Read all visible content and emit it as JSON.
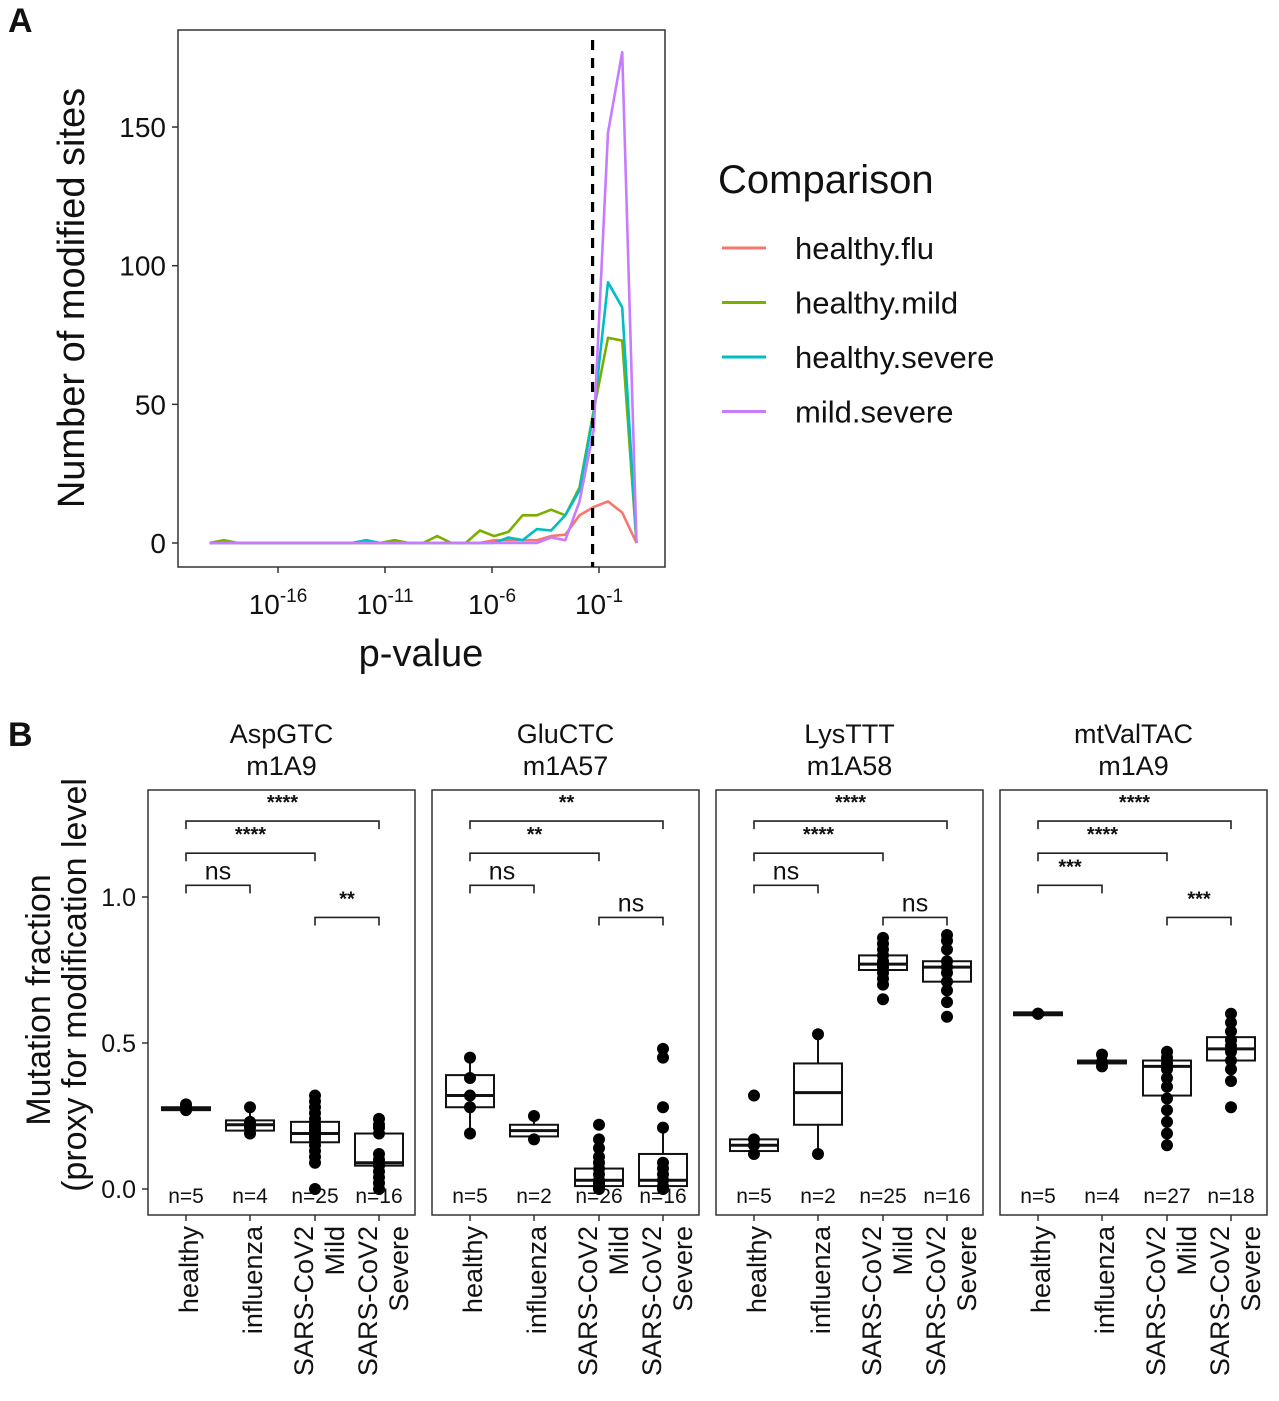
{
  "panel_labels": [
    "A",
    "B"
  ],
  "chart_data": [
    {
      "type": "line",
      "panel": "A",
      "xlabel": "p-value",
      "ylabel": "Number of modified sites",
      "x_scale": "log10",
      "x_ticks": [
        {
          "base": "10",
          "exp": "-16",
          "value": -16
        },
        {
          "base": "10",
          "exp": "-11",
          "value": -11
        },
        {
          "base": "10",
          "exp": "-6",
          "value": -6
        },
        {
          "base": "10",
          "exp": "-1",
          "value": -1
        }
      ],
      "y_ticks": [
        0,
        50,
        100,
        150
      ],
      "xlim_log10": [
        -20.6,
        1.7
      ],
      "ylim": [
        -8.6,
        185
      ],
      "threshold_log10": -1.3,
      "legend": {
        "title": "Comparison",
        "placement": "right"
      },
      "x_log10": [
        -19.2,
        -18.535,
        -17.87,
        -17.205,
        -16.54,
        -15.875,
        -15.21,
        -14.545,
        -13.88,
        -13.215,
        -12.55,
        -11.885,
        -11.22,
        -10.555,
        -9.89,
        -9.225,
        -8.56,
        -7.895,
        -7.23,
        -6.565,
        -5.9,
        -5.235,
        -4.57,
        -3.905,
        -3.24,
        -2.575,
        -1.91,
        -1.245,
        -0.58,
        0.085,
        0.75
      ],
      "series": [
        {
          "name": "healthy.flu",
          "color": "#F8766D",
          "values": [
            0,
            0,
            0,
            0,
            0,
            0,
            0,
            0,
            0,
            0,
            0,
            0,
            0,
            0,
            0,
            0,
            0,
            0,
            0,
            0,
            1,
            1,
            1,
            1,
            2.5,
            3,
            10,
            13,
            15,
            11,
            0
          ]
        },
        {
          "name": "healthy.mild",
          "color": "#7CAE00",
          "values": [
            0,
            1,
            0,
            0,
            0,
            0,
            0,
            0,
            0,
            0,
            0,
            0,
            0,
            1,
            0,
            0,
            2.5,
            0,
            0,
            4.5,
            2.5,
            4,
            10,
            10,
            12,
            10,
            20,
            48,
            74,
            73,
            0
          ]
        },
        {
          "name": "healthy.severe",
          "color": "#00BFC4",
          "values": [
            0,
            0,
            0,
            0,
            0,
            0,
            0,
            0,
            0,
            0,
            0,
            1,
            0,
            0,
            0,
            0,
            0,
            0,
            0,
            0,
            0,
            2,
            1,
            5,
            4.5,
            10,
            19,
            47,
            94,
            85,
            0
          ]
        },
        {
          "name": "mild.severe",
          "color": "#C77CFF",
          "values": [
            0,
            0,
            0,
            0,
            0,
            0,
            0,
            0,
            0,
            0,
            0,
            0,
            0,
            0,
            0,
            0,
            0,
            0,
            0,
            0,
            0,
            0,
            0,
            0,
            2,
            1,
            15,
            41,
            148,
            177,
            0
          ]
        }
      ]
    },
    {
      "type": "box",
      "panel": "B",
      "ylabel_lines": [
        "Mutation fraction",
        "(proxy for modification level"
      ],
      "y_ticks": [
        "0.0",
        "0.5",
        "1.0"
      ],
      "y_tick_values": [
        0,
        0.5,
        1.0
      ],
      "ylim": [
        -0.09,
        1.36
      ],
      "categories": [
        [
          "healthy"
        ],
        [
          "influenza"
        ],
        [
          "SARS-CoV2",
          "Mild"
        ],
        [
          "SARS-CoV2",
          "Severe"
        ]
      ],
      "facets": [
        {
          "title": [
            "AspGTC",
            "m1A9"
          ],
          "n": [
            "n=5",
            "n=4",
            "n=25",
            "n=16"
          ],
          "boxes": [
            {
              "q1": 0.27,
              "median": 0.275,
              "q3": 0.28,
              "lo": 0.27,
              "hi": 0.28,
              "points": [
                0.27,
                0.275,
                0.28,
                0.29,
                0.275
              ]
            },
            {
              "q1": 0.2,
              "median": 0.22,
              "q3": 0.235,
              "lo": 0.19,
              "hi": 0.28,
              "points": [
                0.19,
                0.21,
                0.23,
                0.28
              ]
            },
            {
              "q1": 0.16,
              "median": 0.19,
              "q3": 0.23,
              "lo": 0.09,
              "hi": 0.32,
              "points": [
                0.0,
                0.09,
                0.11,
                0.13,
                0.15,
                0.17,
                0.18,
                0.19,
                0.2,
                0.21,
                0.22,
                0.24,
                0.26,
                0.28,
                0.3,
                0.32
              ]
            },
            {
              "q1": 0.08,
              "median": 0.09,
              "q3": 0.19,
              "lo": 0.0,
              "hi": 0.24,
              "points": [
                0.0,
                0.02,
                0.04,
                0.06,
                0.08,
                0.1,
                0.12,
                0.19,
                0.21,
                0.22,
                0.24
              ]
            }
          ],
          "comparisons": [
            {
              "from": 0,
              "to": 1,
              "y": 1.04,
              "label": "ns"
            },
            {
              "from": 0,
              "to": 2,
              "y": 1.15,
              "label": "****"
            },
            {
              "from": 0,
              "to": 3,
              "y": 1.26,
              "label": "****"
            },
            {
              "from": 2,
              "to": 3,
              "y": 0.93,
              "label": "**"
            }
          ]
        },
        {
          "title": [
            "GluCTC",
            "m1A57"
          ],
          "n": [
            "n=5",
            "n=2",
            "n=26",
            "n=16"
          ],
          "boxes": [
            {
              "q1": 0.28,
              "median": 0.32,
              "q3": 0.39,
              "lo": 0.19,
              "hi": 0.45,
              "points": [
                0.19,
                0.28,
                0.32,
                0.38,
                0.45
              ]
            },
            {
              "q1": 0.18,
              "median": 0.2,
              "q3": 0.22,
              "lo": 0.17,
              "hi": 0.25,
              "points": [
                0.17,
                0.25
              ]
            },
            {
              "q1": 0.01,
              "median": 0.03,
              "q3": 0.07,
              "lo": 0.0,
              "hi": 0.14,
              "points": [
                0.0,
                0.01,
                0.02,
                0.03,
                0.05,
                0.07,
                0.09,
                0.11,
                0.14,
                0.17,
                0.22
              ]
            },
            {
              "q1": 0.01,
              "median": 0.03,
              "q3": 0.12,
              "lo": 0.0,
              "hi": 0.21,
              "points": [
                0.0,
                0.01,
                0.03,
                0.05,
                0.07,
                0.09,
                0.21,
                0.28,
                0.45,
                0.48
              ]
            }
          ],
          "comparisons": [
            {
              "from": 0,
              "to": 1,
              "y": 1.04,
              "label": "ns"
            },
            {
              "from": 0,
              "to": 2,
              "y": 1.15,
              "label": "**"
            },
            {
              "from": 0,
              "to": 3,
              "y": 1.26,
              "label": "**"
            },
            {
              "from": 2,
              "to": 3,
              "y": 0.93,
              "label": "ns"
            }
          ]
        },
        {
          "title": [
            "LysTTT",
            "m1A58"
          ],
          "n": [
            "n=5",
            "n=2",
            "n=25",
            "n=16"
          ],
          "boxes": [
            {
              "q1": 0.13,
              "median": 0.15,
              "q3": 0.17,
              "lo": 0.12,
              "hi": 0.18,
              "points": [
                0.12,
                0.15,
                0.17,
                0.32
              ]
            },
            {
              "q1": 0.22,
              "median": 0.33,
              "q3": 0.43,
              "lo": 0.12,
              "hi": 0.53,
              "points": [
                0.12,
                0.53
              ]
            },
            {
              "q1": 0.75,
              "median": 0.77,
              "q3": 0.8,
              "lo": 0.7,
              "hi": 0.86,
              "points": [
                0.65,
                0.7,
                0.72,
                0.74,
                0.76,
                0.77,
                0.78,
                0.8,
                0.82,
                0.84,
                0.86
              ]
            },
            {
              "q1": 0.71,
              "median": 0.76,
              "q3": 0.78,
              "lo": 0.64,
              "hi": 0.87,
              "points": [
                0.59,
                0.64,
                0.68,
                0.71,
                0.74,
                0.76,
                0.78,
                0.82,
                0.85,
                0.87
              ]
            }
          ],
          "comparisons": [
            {
              "from": 0,
              "to": 1,
              "y": 1.04,
              "label": "ns"
            },
            {
              "from": 0,
              "to": 2,
              "y": 1.15,
              "label": "****"
            },
            {
              "from": 0,
              "to": 3,
              "y": 1.26,
              "label": "****"
            },
            {
              "from": 2,
              "to": 3,
              "y": 0.93,
              "label": "ns"
            }
          ]
        },
        {
          "title": [
            "mtValTAC",
            "m1A9"
          ],
          "n": [
            "n=5",
            "n=4",
            "n=27",
            "n=18"
          ],
          "boxes": [
            {
              "q1": 0.595,
              "median": 0.6,
              "q3": 0.605,
              "lo": 0.595,
              "hi": 0.605,
              "points": [
                0.6,
                0.6,
                0.6
              ]
            },
            {
              "q1": 0.43,
              "median": 0.435,
              "q3": 0.44,
              "lo": 0.42,
              "hi": 0.46,
              "points": [
                0.42,
                0.435,
                0.46
              ]
            },
            {
              "q1": 0.32,
              "median": 0.42,
              "q3": 0.44,
              "lo": 0.15,
              "hi": 0.47,
              "points": [
                0.15,
                0.19,
                0.23,
                0.27,
                0.31,
                0.35,
                0.38,
                0.41,
                0.43,
                0.45,
                0.47
              ]
            },
            {
              "q1": 0.44,
              "median": 0.48,
              "q3": 0.52,
              "lo": 0.37,
              "hi": 0.6,
              "points": [
                0.28,
                0.37,
                0.41,
                0.44,
                0.47,
                0.49,
                0.51,
                0.54,
                0.57,
                0.6
              ]
            }
          ],
          "comparisons": [
            {
              "from": 0,
              "to": 1,
              "y": 1.04,
              "label": "***"
            },
            {
              "from": 0,
              "to": 2,
              "y": 1.15,
              "label": "****"
            },
            {
              "from": 0,
              "to": 3,
              "y": 1.26,
              "label": "****"
            },
            {
              "from": 2,
              "to": 3,
              "y": 0.93,
              "label": "***"
            }
          ]
        }
      ]
    }
  ]
}
